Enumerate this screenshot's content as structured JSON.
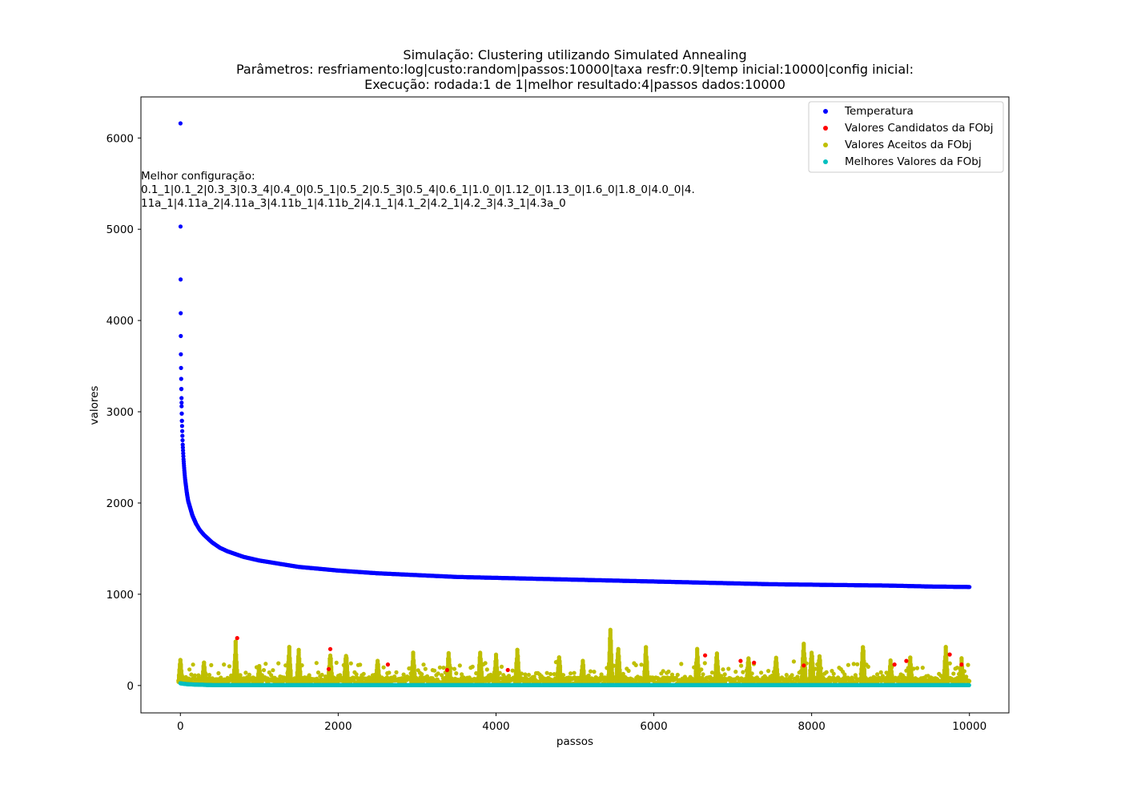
{
  "chart_data": {
    "type": "scatter",
    "title_lines": [
      "Simulação: Clustering utilizando Simulated Annealing",
      "Parâmetros: resfriamento:log|custo:random|passos:10000|taxa resfr:0.9|temp inicial:10000|config inicial:",
      "Execução: rodada:1 de 1|melhor resultado:4|passos dados:10000"
    ],
    "xlabel": "passos",
    "ylabel": "valores",
    "xlim": [
      -500,
      10500
    ],
    "ylim": [
      -300,
      6450
    ],
    "xticks": [
      0,
      2000,
      4000,
      6000,
      8000,
      10000
    ],
    "yticks": [
      0,
      1000,
      2000,
      3000,
      4000,
      5000,
      6000
    ],
    "grid": false,
    "legend_position": "top-right",
    "annotation_lines": [
      "Melhor configuração:",
      "0.1_1|0.1_2|0.3_3|0.3_4|0.4_0|0.5_1|0.5_2|0.5_3|0.5_4|0.6_1|1.0_0|1.12_0|1.13_0|1.6_0|1.8_0|4.0_0|4.",
      "11a_1|4.11a_2|4.11a_3|4.11b_1|4.11b_2|4.1_1|4.1_2|4.2_1|4.2_3|4.3_1|4.3a_0"
    ],
    "series": [
      {
        "name": "Temperatura",
        "color": "#0000ff",
        "description": "temperature decays logarithmically from ~6160 at step 0 to ~1080 at step 10000",
        "x": [
          1,
          2,
          3,
          4,
          5,
          6,
          8,
          10,
          12,
          15,
          18,
          20,
          25,
          30,
          40,
          50,
          60,
          80,
          100,
          150,
          200,
          250,
          300,
          400,
          500,
          600,
          800,
          1000,
          1500,
          2000,
          2500,
          3000,
          3500,
          4000,
          4500,
          5000,
          5500,
          6000,
          6500,
          7000,
          7500,
          8000,
          8500,
          9000,
          9500,
          10000
        ],
        "y": [
          6160,
          5030,
          4450,
          4080,
          3830,
          3630,
          3480,
          3360,
          3250,
          3100,
          2980,
          2900,
          2760,
          2640,
          2480,
          2360,
          2260,
          2120,
          2020,
          1870,
          1770,
          1700,
          1650,
          1570,
          1510,
          1470,
          1410,
          1370,
          1300,
          1260,
          1230,
          1210,
          1190,
          1180,
          1170,
          1160,
          1150,
          1140,
          1130,
          1120,
          1110,
          1105,
          1100,
          1095,
          1085,
          1080
        ]
      },
      {
        "name": "Valores Candidatos da FObj",
        "color": "#ff0000",
        "description": "candidate objective values, noisy between 0 and ~520",
        "x": [
          720,
          1880,
          1900,
          2630,
          3380,
          4150,
          6650,
          7100,
          7270,
          7900,
          9050,
          9200,
          9750,
          9900
        ],
        "y": [
          520,
          180,
          400,
          230,
          170,
          170,
          330,
          270,
          250,
          220,
          230,
          270,
          340,
          230
        ]
      },
      {
        "name": "Valores Aceitos da FObj",
        "color": "#bfbf00",
        "description": "accepted objective values, dense band roughly 0-300 with spikes",
        "peaks_x": [
          0,
          300,
          700,
          1000,
          1380,
          1500,
          1900,
          2100,
          2500,
          2950,
          3400,
          3800,
          4000,
          4270,
          4800,
          5100,
          5450,
          5550,
          5900,
          6550,
          6800,
          7200,
          7550,
          7900,
          8000,
          8100,
          8650,
          9000,
          9250,
          9700,
          9900
        ],
        "peaks_y": [
          310,
          280,
          490,
          230,
          440,
          400,
          380,
          380,
          290,
          380,
          400,
          410,
          350,
          420,
          360,
          280,
          650,
          470,
          430,
          420,
          390,
          330,
          330,
          510,
          420,
          350,
          480,
          280,
          340,
          460,
          300
        ]
      },
      {
        "name": "Melhores Valores da FObj",
        "color": "#00bfbf",
        "description": "best objective values, near 0 across all steps (~25 at start)",
        "x": [
          0,
          50,
          100,
          200,
          400,
          1000,
          10000
        ],
        "y": [
          25,
          18,
          14,
          10,
          5,
          4,
          4
        ]
      }
    ]
  }
}
